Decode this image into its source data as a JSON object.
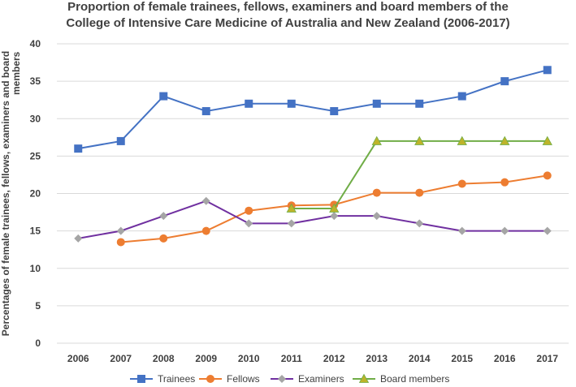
{
  "chart_data": {
    "type": "line",
    "title_line1": "Proportion of female trainees, fellows, examiners and board members of the",
    "title_line2": "College of Intensive Care Medicine of Australia and New Zealand (2006-2017)",
    "ylabel_line1": "Percentages of female trainees, fellows, examiners and board",
    "ylabel_line2": "members",
    "xlabel": "",
    "ylim": [
      0,
      40
    ],
    "yticks": [
      0,
      5,
      10,
      15,
      20,
      25,
      30,
      35,
      40
    ],
    "categories": [
      "2006",
      "2007",
      "2008",
      "2009",
      "2010",
      "2011",
      "2012",
      "2013",
      "2014",
      "2015",
      "2016",
      "2017"
    ],
    "grid": true,
    "legend_position": "bottom",
    "series": [
      {
        "name": "Trainees",
        "color": "#4472C4",
        "marker": "square",
        "values": [
          26,
          27,
          33,
          31,
          32,
          32,
          31,
          32,
          32,
          33,
          35,
          36.5
        ]
      },
      {
        "name": "Fellows",
        "color": "#ED7D31",
        "marker": "circle",
        "values": [
          null,
          13.5,
          14,
          15,
          17.7,
          18.4,
          18.5,
          20.1,
          20.1,
          21.3,
          21.5,
          22.4
        ]
      },
      {
        "name": "Examiners",
        "color": "#7030A0",
        "marker": "diamond",
        "marker_color": "#A5A5A5",
        "values": [
          14,
          15,
          17,
          19,
          16,
          16,
          17,
          17,
          16,
          15,
          15,
          15
        ]
      },
      {
        "name": "Board members",
        "color": "#70AD47",
        "marker": "triangle",
        "marker_color": "#BDB42A",
        "values": [
          null,
          null,
          null,
          null,
          null,
          18,
          18,
          27,
          27,
          27,
          27,
          27
        ]
      }
    ]
  }
}
